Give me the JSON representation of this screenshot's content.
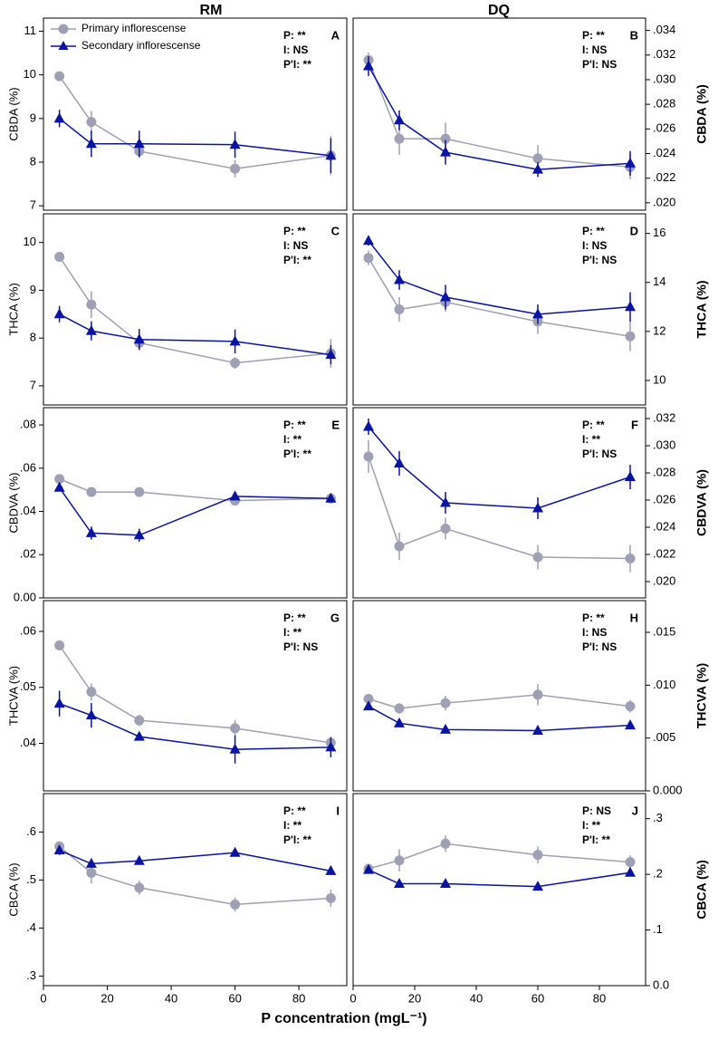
{
  "figure": {
    "columns": [
      "RM",
      "DQ"
    ],
    "xlabel": "P concentration (mgL⁻¹)"
  },
  "chart_data": [
    {
      "type": "line",
      "letter": "A",
      "ylabel": "CBDA (%)",
      "annotations": [
        "P: **",
        "I: NS",
        "P'I: **"
      ],
      "legend": "upper left",
      "x": [
        5,
        15,
        30,
        60,
        90
      ],
      "xlim": [
        0,
        95
      ],
      "ylim": [
        6.9,
        11.3
      ],
      "yticks": [
        7,
        8,
        9,
        10,
        11
      ],
      "series": [
        {
          "name": "Primary inflorescense",
          "color": "#a0a0b4",
          "marker": "circle",
          "values": [
            9.97,
            8.92,
            8.25,
            7.85,
            8.15
          ],
          "errors": [
            0.1,
            0.25,
            0.15,
            0.2,
            0.45
          ]
        },
        {
          "name": "Secondary inflorescense",
          "color": "#0a14a0",
          "marker": "triangle",
          "values": [
            9.0,
            8.42,
            8.42,
            8.4,
            8.15
          ],
          "errors": [
            0.2,
            0.3,
            0.3,
            0.3,
            0.4
          ]
        }
      ]
    },
    {
      "type": "line",
      "letter": "B",
      "ylabel": "CBDA (%)",
      "annotations": [
        "P: **",
        "I: NS",
        "P'I: NS"
      ],
      "x": [
        5,
        15,
        30,
        60,
        90
      ],
      "xlim": [
        0,
        95
      ],
      "ylim": [
        0.0194,
        0.035
      ],
      "yticks": [
        {
          "value": 0.02,
          "label": ".020"
        },
        {
          "value": 0.022,
          "label": ".022"
        },
        {
          "value": 0.024,
          "label": ".024"
        },
        {
          "value": 0.026,
          "label": ".026"
        },
        {
          "value": 0.028,
          "label": ".028"
        },
        {
          "value": 0.03,
          "label": ".030"
        },
        {
          "value": 0.032,
          "label": ".032"
        },
        {
          "value": 0.034,
          "label": ".034"
        }
      ],
      "series": [
        {
          "color": "#a0a0b4",
          "marker": "circle",
          "values": [
            0.0316,
            0.0252,
            0.0252,
            0.0236,
            0.0229
          ],
          "errors": [
            0.0006,
            0.0013,
            0.0013,
            0.0011,
            0.001
          ]
        },
        {
          "color": "#0a14a0",
          "marker": "triangle",
          "values": [
            0.0311,
            0.0267,
            0.0241,
            0.0227,
            0.0232
          ],
          "errors": [
            0.0008,
            0.0008,
            0.001,
            0.0006,
            0.001
          ]
        }
      ]
    },
    {
      "type": "line",
      "letter": "C",
      "ylabel": "THCA (%)",
      "annotations": [
        "P: **",
        "I: NS",
        "P'I: **"
      ],
      "x": [
        5,
        15,
        30,
        60,
        90
      ],
      "xlim": [
        0,
        95
      ],
      "ylim": [
        6.6,
        10.6
      ],
      "yticks": [
        7,
        8,
        9,
        10
      ],
      "series": [
        {
          "color": "#a0a0b4",
          "marker": "circle",
          "values": [
            9.7,
            8.7,
            7.9,
            7.48,
            7.68
          ],
          "errors": [
            0.05,
            0.28,
            0.12,
            0.12,
            0.3
          ]
        },
        {
          "color": "#0a14a0",
          "marker": "triangle",
          "values": [
            8.5,
            8.15,
            7.97,
            7.93,
            7.65
          ],
          "errors": [
            0.17,
            0.2,
            0.22,
            0.25,
            0.2
          ]
        }
      ]
    },
    {
      "type": "line",
      "letter": "D",
      "ylabel": "THCA (%)",
      "annotations": [
        "P: **",
        "I: NS",
        "P'I: NS"
      ],
      "x": [
        5,
        15,
        30,
        60,
        90
      ],
      "xlim": [
        0,
        95
      ],
      "ylim": [
        9,
        16.8
      ],
      "yticks": [
        10,
        12,
        14,
        16
      ],
      "series": [
        {
          "color": "#a0a0b4",
          "marker": "circle",
          "values": [
            15.0,
            12.9,
            13.2,
            12.4,
            11.8
          ],
          "errors": [
            0.3,
            0.5,
            0.4,
            0.5,
            0.6
          ]
        },
        {
          "color": "#0a14a0",
          "marker": "triangle",
          "values": [
            15.7,
            14.1,
            13.4,
            12.7,
            13.0
          ],
          "errors": [
            0.2,
            0.4,
            0.5,
            0.4,
            0.6
          ]
        }
      ]
    },
    {
      "type": "line",
      "letter": "E",
      "ylabel": "CBDVA (%)",
      "annotations": [
        "P: **",
        "I:  **",
        "P'I: **"
      ],
      "x": [
        5,
        15,
        30,
        60,
        90
      ],
      "xlim": [
        0,
        95
      ],
      "ylim": [
        0,
        0.088
      ],
      "yticks": [
        {
          "value": 0,
          "label": "0.00"
        },
        {
          "value": 0.02,
          "label": ".02"
        },
        {
          "value": 0.04,
          "label": ".04"
        },
        {
          "value": 0.06,
          "label": ".06"
        },
        {
          "value": 0.08,
          "label": ".08"
        }
      ],
      "series": [
        {
          "color": "#a0a0b4",
          "marker": "circle",
          "values": [
            0.055,
            0.049,
            0.049,
            0.045,
            0.046
          ],
          "errors": [
            0.001,
            0.001,
            0.001,
            0.001,
            0.001
          ]
        },
        {
          "color": "#0a14a0",
          "marker": "triangle",
          "values": [
            0.051,
            0.03,
            0.029,
            0.047,
            0.046
          ],
          "errors": [
            0.001,
            0.003,
            0.003,
            0.001,
            0.001
          ]
        }
      ]
    },
    {
      "type": "line",
      "letter": "F",
      "ylabel": "CBDVA (%)",
      "annotations": [
        "P: **",
        "I:  **",
        "P'I: NS"
      ],
      "x": [
        5,
        15,
        30,
        60,
        90
      ],
      "xlim": [
        0,
        95
      ],
      "ylim": [
        0.0188,
        0.0328
      ],
      "yticks": [
        {
          "value": 0.02,
          "label": ".020"
        },
        {
          "value": 0.022,
          "label": ".022"
        },
        {
          "value": 0.024,
          "label": ".024"
        },
        {
          "value": 0.026,
          "label": ".026"
        },
        {
          "value": 0.028,
          "label": ".028"
        },
        {
          "value": 0.03,
          "label": ".030"
        },
        {
          "value": 0.032,
          "label": ".032"
        }
      ],
      "series": [
        {
          "color": "#a0a0b4",
          "marker": "circle",
          "values": [
            0.0292,
            0.0226,
            0.0239,
            0.0218,
            0.0217
          ],
          "errors": [
            0.0012,
            0.001,
            0.0008,
            0.0009,
            0.001
          ]
        },
        {
          "color": "#0a14a0",
          "marker": "triangle",
          "values": [
            0.0314,
            0.0287,
            0.0258,
            0.0254,
            0.0277
          ],
          "errors": [
            0.0006,
            0.0009,
            0.0008,
            0.0008,
            0.0009
          ]
        }
      ]
    },
    {
      "type": "line",
      "letter": "G",
      "ylabel": "THCVA (%)",
      "annotations": [
        "P: **",
        "I:  **",
        "P'I: NS"
      ],
      "x": [
        5,
        15,
        30,
        60,
        90
      ],
      "xlim": [
        0,
        95
      ],
      "ylim": [
        0.0315,
        0.0655
      ],
      "yticks": [
        {
          "value": 0.04,
          "label": ".04"
        },
        {
          "value": 0.05,
          "label": ".05"
        },
        {
          "value": 0.06,
          "label": ".06"
        }
      ],
      "series": [
        {
          "color": "#a0a0b4",
          "marker": "circle",
          "values": [
            0.0575,
            0.0492,
            0.0441,
            0.0427,
            0.0401
          ],
          "errors": [
            0.0003,
            0.0015,
            0.001,
            0.0015,
            0.001
          ]
        },
        {
          "color": "#0a14a0",
          "marker": "triangle",
          "values": [
            0.0471,
            0.045,
            0.0412,
            0.0389,
            0.0393
          ],
          "errors": [
            0.0023,
            0.0022,
            0.0005,
            0.0025,
            0.0018
          ]
        }
      ]
    },
    {
      "type": "line",
      "letter": "H",
      "ylabel": "THCVA (%)",
      "annotations": [
        "P: **",
        "I: NS",
        "P'I: NS"
      ],
      "x": [
        5,
        15,
        30,
        60,
        90
      ],
      "xlim": [
        0,
        95
      ],
      "ylim": [
        0,
        0.018
      ],
      "yticks": [
        {
          "value": 0,
          "label": "0.000"
        },
        {
          "value": 0.005,
          "label": ".005"
        },
        {
          "value": 0.01,
          "label": ".010"
        },
        {
          "value": 0.015,
          "label": ".015"
        }
      ],
      "series": [
        {
          "color": "#a0a0b4",
          "marker": "circle",
          "values": [
            0.0087,
            0.0078,
            0.0083,
            0.0091,
            0.008
          ],
          "errors": [
            0.0003,
            0.0005,
            0.0007,
            0.001,
            0.0006
          ]
        },
        {
          "color": "#0a14a0",
          "marker": "triangle",
          "values": [
            0.008,
            0.0064,
            0.0058,
            0.0057,
            0.0062
          ],
          "errors": [
            0.0003,
            0.0003,
            0.0002,
            0.0002,
            0.0003
          ]
        }
      ]
    },
    {
      "type": "line",
      "letter": "I",
      "ylabel": "CBCA (%)",
      "annotations": [
        "P: **",
        "I:  **",
        "P'I: **"
      ],
      "x": [
        5,
        15,
        30,
        60,
        90
      ],
      "xlim": [
        0,
        95
      ],
      "xticks": [
        0,
        20,
        40,
        60,
        80
      ],
      "ylim": [
        0.28,
        0.68
      ],
      "yticks": [
        {
          "value": 0.3,
          "label": ".3"
        },
        {
          "value": 0.4,
          "label": ".4"
        },
        {
          "value": 0.5,
          "label": ".5"
        },
        {
          "value": 0.6,
          "label": ".6"
        }
      ],
      "series": [
        {
          "color": "#a0a0b4",
          "marker": "circle",
          "values": [
            0.57,
            0.515,
            0.484,
            0.449,
            0.462
          ],
          "errors": [
            0.008,
            0.022,
            0.015,
            0.015,
            0.018
          ]
        },
        {
          "color": "#0a14a0",
          "marker": "triangle",
          "values": [
            0.562,
            0.534,
            0.54,
            0.557,
            0.519
          ],
          "errors": [
            0.01,
            0.008,
            0.008,
            0.008,
            0.008
          ]
        }
      ]
    },
    {
      "type": "line",
      "letter": "J",
      "ylabel": "CBCA (%)",
      "annotations": [
        "P: NS",
        "I:  **",
        "P'I: **"
      ],
      "x": [
        5,
        15,
        30,
        60,
        90
      ],
      "xlim": [
        0,
        95
      ],
      "xticks": [
        0,
        20,
        40,
        60,
        80
      ],
      "ylim": [
        0,
        0.345
      ],
      "yticks": [
        {
          "value": 0,
          "label": "0.0"
        },
        {
          "value": 0.1,
          "label": ".1"
        },
        {
          "value": 0.2,
          "label": ".2"
        },
        {
          "value": 0.3,
          "label": ".3"
        }
      ],
      "series": [
        {
          "color": "#a0a0b4",
          "marker": "circle",
          "values": [
            0.21,
            0.225,
            0.255,
            0.235,
            0.222
          ],
          "errors": [
            0.008,
            0.02,
            0.015,
            0.015,
            0.012
          ]
        },
        {
          "color": "#0a14a0",
          "marker": "triangle",
          "values": [
            0.208,
            0.183,
            0.183,
            0.178,
            0.203
          ],
          "errors": [
            0.006,
            0.005,
            0.005,
            0.005,
            0.006
          ]
        }
      ]
    }
  ]
}
